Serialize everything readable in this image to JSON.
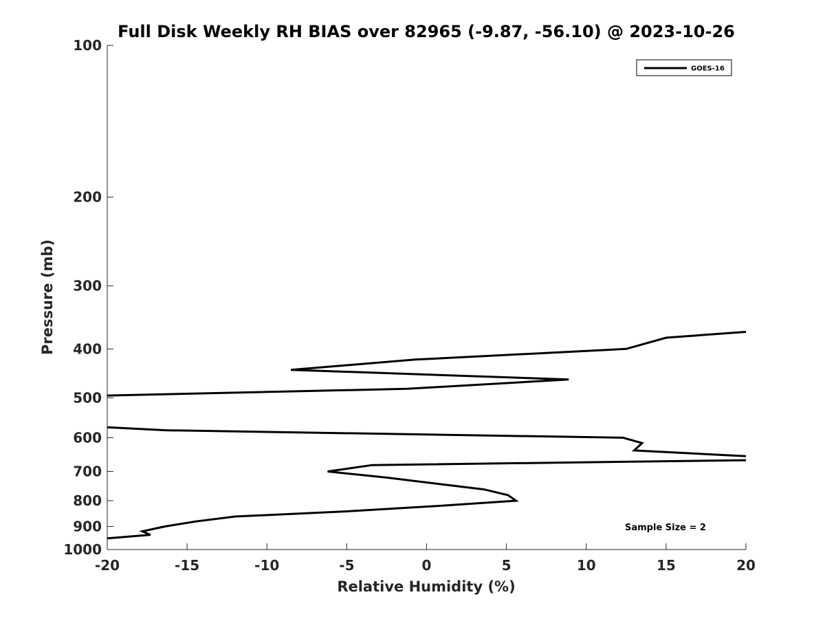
{
  "chart_data": {
    "type": "line",
    "title": "Full Disk Weekly RH BIAS over 82965 (-9.87, -56.10) @ 2023-10-26",
    "xlabel": "Relative Humidity (%)",
    "ylabel": "Pressure (mb)",
    "xlim": [
      -20,
      20
    ],
    "ylim": [
      100,
      1000
    ],
    "y_scale": "log",
    "y_reversed": true,
    "grid": false,
    "legend_position": "top-right",
    "xticks": [
      -20,
      -15,
      -10,
      -5,
      0,
      5,
      10,
      15,
      20
    ],
    "xtick_labels": [
      "-20",
      "-15",
      "-10",
      "-5",
      "0",
      "5",
      "10",
      "15",
      "20"
    ],
    "yticks": [
      100,
      200,
      300,
      400,
      500,
      600,
      700,
      800,
      900,
      1000
    ],
    "ytick_labels": [
      "100",
      "200",
      "300",
      "400",
      "500",
      "600",
      "700",
      "800",
      "900",
      "1000"
    ],
    "annotation": "Sample Size = 2",
    "series": [
      {
        "name": "GOES-16",
        "color": "#000000",
        "segments": [
          {
            "x": [
              20,
              15,
              12.5,
              -0.7,
              -8.5,
              8.9,
              -1.2,
              -20
            ],
            "y": [
              370,
              380,
              400,
              420,
              440,
              460,
              480,
              495
            ]
          },
          {
            "x": [
              -20,
              -16.3,
              12.3,
              13.5,
              13.0,
              20
            ],
            "y": [
              572,
              580,
              600,
              615,
              636,
              653
            ]
          },
          {
            "x": [
              20,
              -3.4,
              -6.2,
              -2.5,
              3.6,
              5.1,
              5.6,
              0.6,
              -5.0,
              -12.0,
              -14.5,
              -16.4,
              -17.8,
              -17.3,
              -20
            ],
            "y": [
              665,
              680,
              700,
              720,
              760,
              780,
              800,
              820,
              840,
              860,
              880,
              900,
              920,
              935,
              950
            ]
          }
        ]
      }
    ]
  }
}
